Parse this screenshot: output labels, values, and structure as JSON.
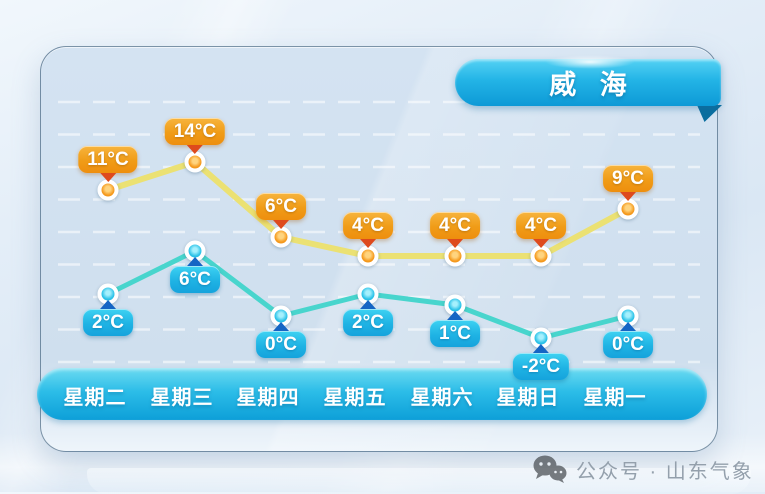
{
  "banner": {
    "title": "威 海"
  },
  "chart_data": {
    "type": "line",
    "categories": [
      "星期二",
      "星期三",
      "星期四",
      "星期五",
      "星期六",
      "星期日",
      "星期一"
    ],
    "series": [
      {
        "name": "high-temperature",
        "values": [
          11,
          14,
          6,
          4,
          4,
          4,
          9
        ],
        "labels": [
          "11°C",
          "14°C",
          "6°C",
          "4°C",
          "4°C",
          "4°C",
          "9°C"
        ],
        "line_color": "#ebe173",
        "point_color": "#f59a1e",
        "label_bg": "#f09c17",
        "arrow_color": "#de4a1d"
      },
      {
        "name": "low-temperature",
        "values": [
          2,
          6,
          0,
          2,
          1,
          -2,
          0
        ],
        "labels": [
          "2°C",
          "6°C",
          "0°C",
          "2°C",
          "1°C",
          "-2°C",
          "0°C"
        ],
        "line_color": "#48d5cd",
        "point_color": "#2bc2e8",
        "label_bg": "#1fb3e4",
        "arrow_color": "#1565c4"
      }
    ],
    "grid": true,
    "gridline_color": "rgba(255,255,255,0.55)",
    "legend": "none",
    "title": "威 海"
  },
  "footer": {
    "label": "公众号 · 山东气象"
  },
  "colors": {
    "banner_gradient_top": "#55d2f4",
    "banner_gradient_bottom": "#0d99d6",
    "day_bar_top": "#6cdbf1",
    "day_bar_bottom": "#0d9fd8",
    "card_bg": "#cfdfee"
  }
}
